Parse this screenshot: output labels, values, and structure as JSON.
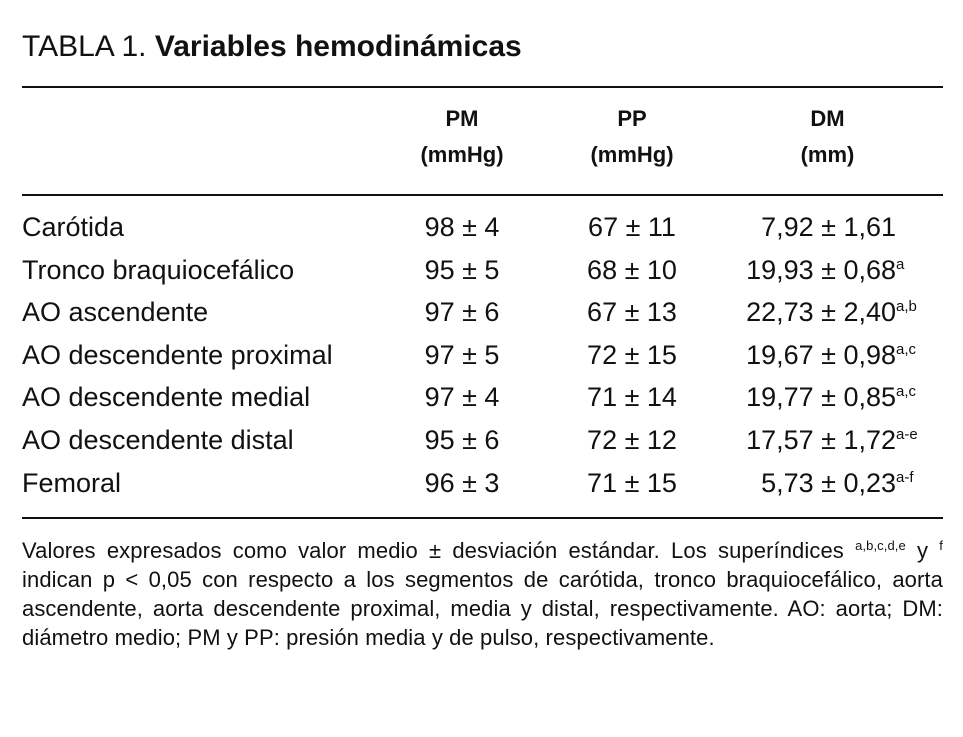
{
  "title": {
    "prefix": "TABLA 1.",
    "text": "Variables hemodinámicas"
  },
  "columns": [
    {
      "label": "PM",
      "unit": "(mmHg)"
    },
    {
      "label": "PP",
      "unit": "(mmHg)"
    },
    {
      "label": "DM",
      "unit": "(mm)"
    }
  ],
  "rows": [
    {
      "name": "Carótida",
      "pm": "98 ± 4",
      "pp": "67 ± 11",
      "dm": "7,92 ± 1,61",
      "sup": ""
    },
    {
      "name": "Tronco braquiocefálico",
      "pm": "95 ± 5",
      "pp": "68 ± 10",
      "dm": "19,93 ± 0,68",
      "sup": "a"
    },
    {
      "name": "AO ascendente",
      "pm": "97 ± 6",
      "pp": "67 ± 13",
      "dm": "22,73 ± 2,40",
      "sup": "a,b"
    },
    {
      "name": "AO descendente proximal",
      "pm": "97 ± 5",
      "pp": "72 ± 15",
      "dm": "19,67 ± 0,98",
      "sup": "a,c"
    },
    {
      "name": "AO descendente medial",
      "pm": "97 ± 4",
      "pp": "71 ± 14",
      "dm": "19,77 ± 0,85",
      "sup": "a,c"
    },
    {
      "name": "AO descendente distal",
      "pm": "95 ± 6",
      "pp": "72 ± 12",
      "dm": "17,57 ± 1,72",
      "sup": "a-e"
    },
    {
      "name": "Femoral",
      "pm": "96 ± 3",
      "pp": "71 ± 15",
      "dm": "5,73 ± 0,23",
      "sup": "a-f"
    }
  ],
  "footnote": {
    "part1": "Valores expresados como valor medio ± desviación estándar. Los superíndices ",
    "sup1": "a,b,c,d,e",
    "part2": " y ",
    "sup2": "f",
    "part3": " indican p < 0,05 con respecto a los segmentos de carótida, tronco braquiocefálico, aorta ascendente, aorta descendente proximal, media y distal, respectivamente. AO: aorta; DM: diámetro medio; PM y PP: presión media y de pulso, respectivamente."
  }
}
